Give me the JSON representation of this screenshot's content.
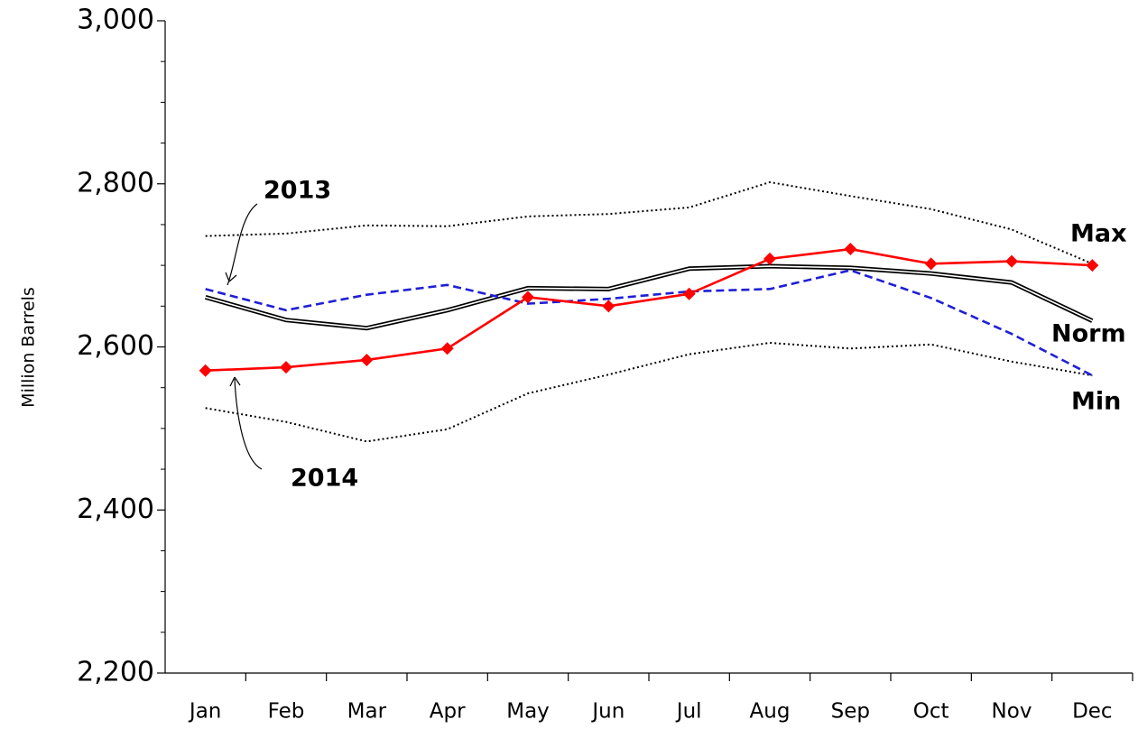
{
  "chart_data": {
    "type": "line",
    "y_label": "Million Barrels",
    "categories": [
      "Jan",
      "Feb",
      "Mar",
      "Apr",
      "May",
      "Jun",
      "Jul",
      "Aug",
      "Sep",
      "Oct",
      "Nov",
      "Dec"
    ],
    "ylim": [
      2200,
      3000
    ],
    "yticks": [
      {
        "value": 2200,
        "label": "2,200"
      },
      {
        "value": 2400,
        "label": "2,400"
      },
      {
        "value": 2600,
        "label": "2,600"
      },
      {
        "value": 2800,
        "label": "2,800"
      },
      {
        "value": 3000,
        "label": "3,000"
      }
    ],
    "series": [
      {
        "name": "Max",
        "color": "#000000",
        "style": "dotted",
        "values": [
          2736,
          2739,
          2749,
          2748,
          2760,
          2763,
          2771,
          2802,
          2785,
          2769,
          2744,
          2702
        ]
      },
      {
        "name": "Min",
        "color": "#000000",
        "style": "dotted",
        "values": [
          2525,
          2508,
          2484,
          2499,
          2543,
          2566,
          2591,
          2605,
          2598,
          2603,
          2582,
          2565
        ]
      },
      {
        "name": "Norm",
        "color": "#000000",
        "style": "double",
        "values": [
          2661,
          2633,
          2623,
          2645,
          2672,
          2671,
          2696,
          2699,
          2697,
          2690,
          2679,
          2632
        ]
      },
      {
        "name": "2013",
        "color": "#1f1fd6",
        "style": "dashed",
        "values": [
          2671,
          2645,
          2664,
          2676,
          2653,
          2659,
          2668,
          2671,
          2694,
          2660,
          2616,
          2565
        ]
      },
      {
        "name": "2014",
        "color": "#ff0000",
        "style": "solid",
        "marker": "diamond",
        "values": [
          2571,
          2575,
          2584,
          2598,
          2661,
          2650,
          2665,
          2708,
          2720,
          2702,
          2705,
          2700
        ]
      }
    ]
  }
}
